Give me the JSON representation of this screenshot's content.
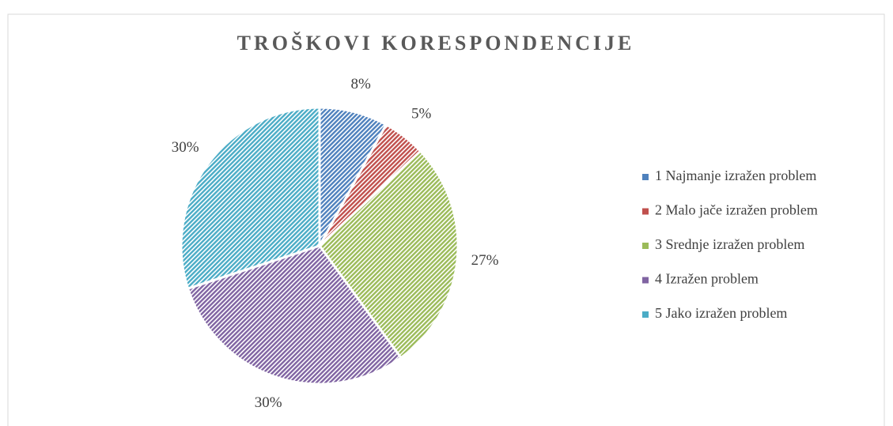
{
  "chart_data": {
    "type": "pie",
    "title": "TROŠKOVI KORESPONDENCIJE",
    "categories": [
      "1 Najmanje izražen problem",
      "2 Malo jače izražen problem",
      "3 Srednje izražen problem",
      "4 Izražen problem",
      "5 Jako izražen problem"
    ],
    "values": [
      8,
      5,
      27,
      30,
      30
    ],
    "value_labels": [
      "8%",
      "5%",
      "27%",
      "30%",
      "30%"
    ],
    "colors": [
      "#4f81bd",
      "#c0504d",
      "#9bbb59",
      "#8064a2",
      "#4bacc6"
    ],
    "legend": "right"
  }
}
